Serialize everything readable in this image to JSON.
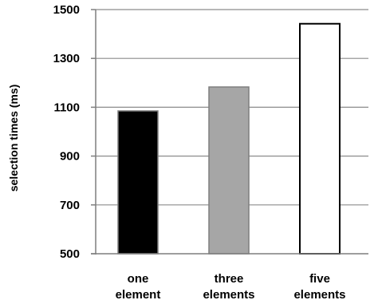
{
  "chart_data": {
    "type": "bar",
    "ylabel": "selection times (ms)",
    "xlabel": "",
    "title": "",
    "ylim": [
      500,
      1500
    ],
    "yticks": [
      500,
      700,
      900,
      1100,
      1300,
      1500
    ],
    "grid": true,
    "categories": [
      [
        "one",
        "element"
      ],
      [
        "three",
        "elements"
      ],
      [
        "five",
        "elements"
      ]
    ],
    "values": [
      1085,
      1183,
      1442
    ],
    "bar_colors": [
      "#000000",
      "#a6a6a6",
      "#ffffff"
    ]
  }
}
